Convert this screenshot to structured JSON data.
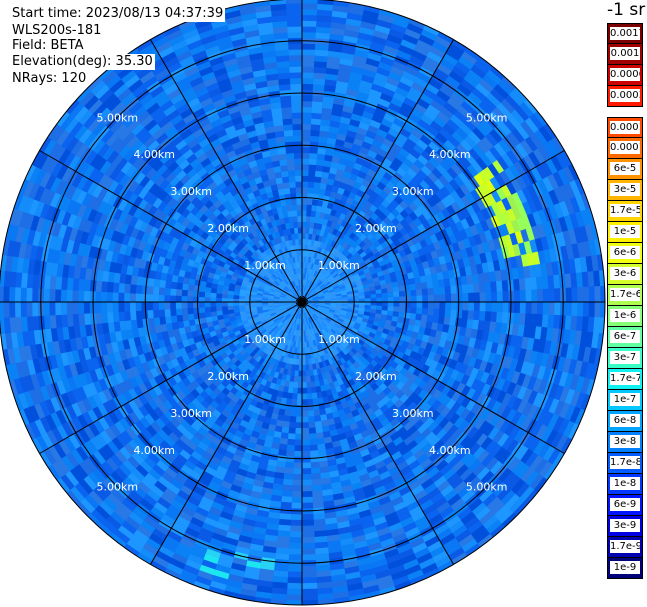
{
  "info": {
    "start_time": "Start time: 2023/08/13 04:37:39",
    "instrument": "WLS200s-181",
    "field": "Field: BETA",
    "elevation": "Elevation(deg): 35.30",
    "nrays": "NRays: 120"
  },
  "colorbar": {
    "unit": "-1 sr",
    "high_group": [
      {
        "label": "0.0017",
        "color": "#7a0000"
      },
      {
        "label": "0.001",
        "color": "#a00000"
      },
      {
        "label": "0.0006",
        "color": "#cc0000"
      },
      {
        "label": "0.0003",
        "color": "#ff1a00"
      }
    ],
    "main_group": [
      {
        "label": "0.00017",
        "color": "#ff4a00"
      },
      {
        "label": "0.0001",
        "color": "#ff6a00"
      },
      {
        "label": "6e-5",
        "color": "#ff9200"
      },
      {
        "label": "3e-5",
        "color": "#ffb400"
      },
      {
        "label": "1.7e-5",
        "color": "#ffd400"
      },
      {
        "label": "1e-5",
        "color": "#fff000"
      },
      {
        "label": "6e-6",
        "color": "#f0ff10"
      },
      {
        "label": "3e-6",
        "color": "#d4ff2a"
      },
      {
        "label": "1.7e-6",
        "color": "#b0ff50"
      },
      {
        "label": "1e-6",
        "color": "#88ff78"
      },
      {
        "label": "6e-7",
        "color": "#60ffa0"
      },
      {
        "label": "3e-7",
        "color": "#38ffc8"
      },
      {
        "label": "1.7e-7",
        "color": "#10f0f0"
      },
      {
        "label": "1e-7",
        "color": "#00c8ff"
      },
      {
        "label": "6e-8",
        "color": "#00a4ff"
      },
      {
        "label": "3e-8",
        "color": "#0080ff"
      },
      {
        "label": "1.7e-8",
        "color": "#005cff"
      },
      {
        "label": "1e-8",
        "color": "#0038ff"
      },
      {
        "label": "6e-9",
        "color": "#0014ff"
      },
      {
        "label": "3e-9",
        "color": "#0000e0"
      },
      {
        "label": "1.7e-9",
        "color": "#0000b0"
      },
      {
        "label": "1e-9",
        "color": "#00007a"
      }
    ]
  },
  "chart_data": {
    "type": "heatmap",
    "projection": "polar-ppi",
    "field": "BETA",
    "elevation_deg": 35.3,
    "nrays": 120,
    "range_rings_km": [
      1.0,
      2.0,
      3.0,
      4.0,
      5.0
    ],
    "ring_labels": [
      "1.00km",
      "2.00km",
      "3.00km",
      "4.00km",
      "5.00km"
    ],
    "max_range_km": 5.8,
    "radials_deg": [
      0,
      30,
      60,
      90,
      120,
      150,
      180,
      210,
      240,
      270,
      300,
      330
    ],
    "colorscale": "log10 jet, 1e-9 to 0.0017 sr-1",
    "background_beta": 3e-08,
    "near_field_beta": 6e-08,
    "feature": {
      "description": "elevated backscatter arc",
      "azimuth_deg": [
        55,
        80
      ],
      "range_km": [
        4.0,
        4.6
      ],
      "beta": 1e-05
    },
    "secondary_patch": {
      "azimuth_deg": [
        185,
        200
      ],
      "range_km": [
        5.0,
        5.5
      ],
      "beta": 2e-07
    }
  }
}
